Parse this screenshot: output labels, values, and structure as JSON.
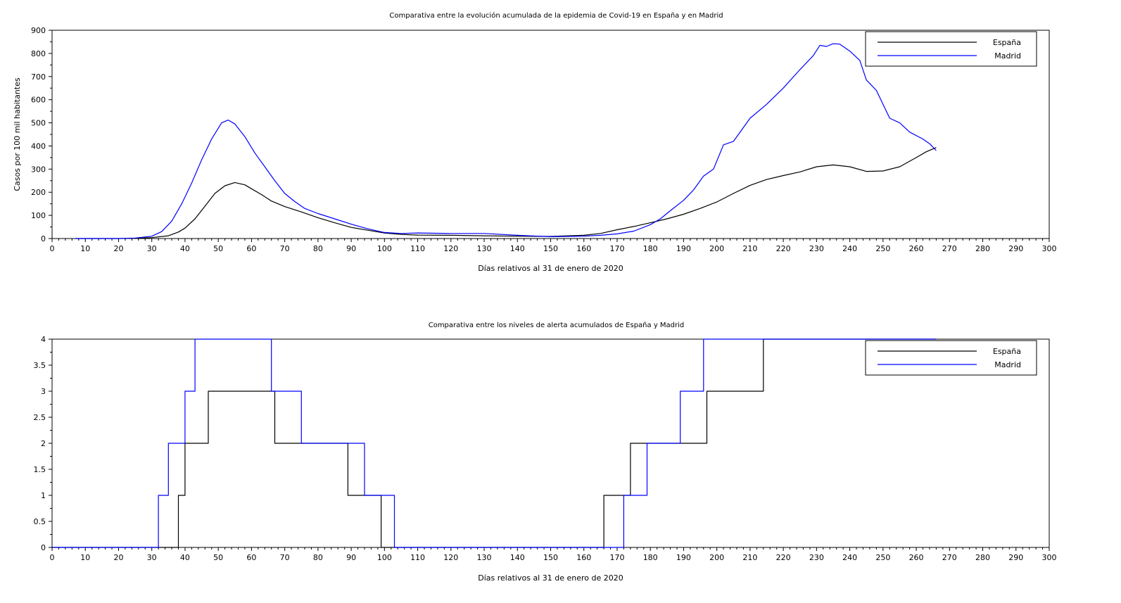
{
  "chart_data": [
    {
      "type": "line",
      "title": "Comparativa entre la evolución acumulada de la epidemia de Covid-19 en España y en Madrid",
      "xlabel": "Días relativos al 31 de enero de 2020",
      "ylabel": "Casos por 100 mil habitantes",
      "xlim": [
        0,
        300
      ],
      "ylim": [
        0,
        900
      ],
      "x_ticks": [
        0,
        10,
        20,
        30,
        40,
        50,
        60,
        70,
        80,
        90,
        100,
        110,
        120,
        130,
        140,
        150,
        160,
        170,
        180,
        190,
        200,
        210,
        220,
        230,
        240,
        250,
        260,
        270,
        280,
        290,
        300
      ],
      "y_ticks": [
        0,
        100,
        200,
        300,
        400,
        500,
        600,
        700,
        800,
        900
      ],
      "legend_position": "top-right",
      "series": [
        {
          "name": "España",
          "color": "#000000",
          "points": [
            [
              7,
              0
            ],
            [
              20,
              0
            ],
            [
              25,
              1
            ],
            [
              30,
              4
            ],
            [
              35,
              12
            ],
            [
              38,
              28
            ],
            [
              40,
              45
            ],
            [
              43,
              85
            ],
            [
              46,
              140
            ],
            [
              49,
              195
            ],
            [
              52,
              228
            ],
            [
              55,
              242
            ],
            [
              58,
              232
            ],
            [
              60,
              215
            ],
            [
              63,
              190
            ],
            [
              66,
              162
            ],
            [
              70,
              138
            ],
            [
              75,
              115
            ],
            [
              80,
              90
            ],
            [
              85,
              68
            ],
            [
              90,
              48
            ],
            [
              95,
              36
            ],
            [
              100,
              24
            ],
            [
              105,
              18
            ],
            [
              110,
              15
            ],
            [
              120,
              14
            ],
            [
              130,
              12
            ],
            [
              140,
              10
            ],
            [
              150,
              9
            ],
            [
              160,
              14
            ],
            [
              165,
              22
            ],
            [
              170,
              38
            ],
            [
              175,
              52
            ],
            [
              180,
              68
            ],
            [
              185,
              85
            ],
            [
              190,
              105
            ],
            [
              195,
              130
            ],
            [
              200,
              158
            ],
            [
              205,
              195
            ],
            [
              210,
              230
            ],
            [
              215,
              255
            ],
            [
              220,
              272
            ],
            [
              225,
              288
            ],
            [
              230,
              310
            ],
            [
              235,
              318
            ],
            [
              240,
              310
            ],
            [
              245,
              290
            ],
            [
              250,
              292
            ],
            [
              255,
              310
            ],
            [
              260,
              350
            ],
            [
              263,
              375
            ],
            [
              266,
              393
            ]
          ]
        },
        {
          "name": "Madrid",
          "color": "#0000ff",
          "points": [
            [
              7,
              0
            ],
            [
              20,
              0
            ],
            [
              25,
              2
            ],
            [
              30,
              10
            ],
            [
              33,
              30
            ],
            [
              36,
              75
            ],
            [
              39,
              150
            ],
            [
              42,
              240
            ],
            [
              45,
              340
            ],
            [
              48,
              430
            ],
            [
              51,
              500
            ],
            [
              53,
              512
            ],
            [
              55,
              495
            ],
            [
              58,
              440
            ],
            [
              61,
              370
            ],
            [
              64,
              310
            ],
            [
              67,
              250
            ],
            [
              70,
              195
            ],
            [
              73,
              160
            ],
            [
              76,
              130
            ],
            [
              80,
              108
            ],
            [
              85,
              85
            ],
            [
              90,
              62
            ],
            [
              95,
              42
            ],
            [
              100,
              26
            ],
            [
              105,
              22
            ],
            [
              110,
              24
            ],
            [
              120,
              22
            ],
            [
              130,
              22
            ],
            [
              140,
              14
            ],
            [
              150,
              8
            ],
            [
              160,
              10
            ],
            [
              165,
              14
            ],
            [
              170,
              20
            ],
            [
              175,
              32
            ],
            [
              180,
              60
            ],
            [
              183,
              85
            ],
            [
              186,
              120
            ],
            [
              190,
              165
            ],
            [
              193,
              210
            ],
            [
              196,
              270
            ],
            [
              199,
              300
            ],
            [
              202,
              405
            ],
            [
              205,
              420
            ],
            [
              208,
              480
            ],
            [
              210,
              520
            ],
            [
              215,
              580
            ],
            [
              220,
              650
            ],
            [
              225,
              730
            ],
            [
              229,
              790
            ],
            [
              231,
              835
            ],
            [
              233,
              830
            ],
            [
              235,
              842
            ],
            [
              237,
              840
            ],
            [
              240,
              810
            ],
            [
              243,
              770
            ],
            [
              245,
              685
            ],
            [
              248,
              640
            ],
            [
              252,
              520
            ],
            [
              255,
              500
            ],
            [
              258,
              460
            ],
            [
              262,
              430
            ],
            [
              264,
              410
            ],
            [
              266,
              380
            ]
          ]
        }
      ]
    },
    {
      "type": "line",
      "title": "Comparativa entre los niveles de alerta acumulados de España y Madrid",
      "xlabel": "Días relativos al 31 de enero de 2020",
      "ylabel": "",
      "xlim": [
        0,
        300
      ],
      "ylim": [
        0,
        4
      ],
      "x_ticks": [
        0,
        10,
        20,
        30,
        40,
        50,
        60,
        70,
        80,
        90,
        100,
        110,
        120,
        130,
        140,
        150,
        160,
        170,
        180,
        190,
        200,
        210,
        220,
        230,
        240,
        250,
        260,
        270,
        280,
        290,
        300
      ],
      "y_ticks": [
        0,
        0.5,
        1,
        1.5,
        2,
        2.5,
        3,
        3.5,
        4
      ],
      "y_tick_labels": [
        "0",
        "0.5",
        "1",
        "1.5",
        "2",
        "2.5",
        "3",
        "3.5",
        "4"
      ],
      "legend_position": "top-right",
      "series": [
        {
          "name": "España",
          "color": "#000000",
          "step": true,
          "points": [
            [
              0,
              0
            ],
            [
              38,
              0
            ],
            [
              38,
              1
            ],
            [
              40,
              1
            ],
            [
              40,
              2
            ],
            [
              47,
              2
            ],
            [
              47,
              3
            ],
            [
              67,
              3
            ],
            [
              67,
              2
            ],
            [
              89,
              2
            ],
            [
              89,
              1
            ],
            [
              99,
              1
            ],
            [
              99,
              0
            ],
            [
              166,
              0
            ],
            [
              166,
              1
            ],
            [
              174,
              1
            ],
            [
              174,
              2
            ],
            [
              197,
              2
            ],
            [
              197,
              3
            ],
            [
              214,
              3
            ],
            [
              214,
              4
            ],
            [
              266,
              4
            ]
          ]
        },
        {
          "name": "Madrid",
          "color": "#0000ff",
          "step": true,
          "points": [
            [
              0,
              0
            ],
            [
              32,
              0
            ],
            [
              32,
              1
            ],
            [
              35,
              1
            ],
            [
              35,
              2
            ],
            [
              40,
              2
            ],
            [
              40,
              3
            ],
            [
              43,
              3
            ],
            [
              43,
              4
            ],
            [
              66,
              4
            ],
            [
              66,
              3
            ],
            [
              75,
              3
            ],
            [
              75,
              2
            ],
            [
              94,
              2
            ],
            [
              94,
              1
            ],
            [
              103,
              1
            ],
            [
              103,
              0
            ],
            [
              172,
              0
            ],
            [
              172,
              1
            ],
            [
              179,
              1
            ],
            [
              179,
              2
            ],
            [
              189,
              2
            ],
            [
              189,
              3
            ],
            [
              196,
              3
            ],
            [
              196,
              4
            ],
            [
              266,
              4
            ]
          ]
        }
      ]
    }
  ]
}
